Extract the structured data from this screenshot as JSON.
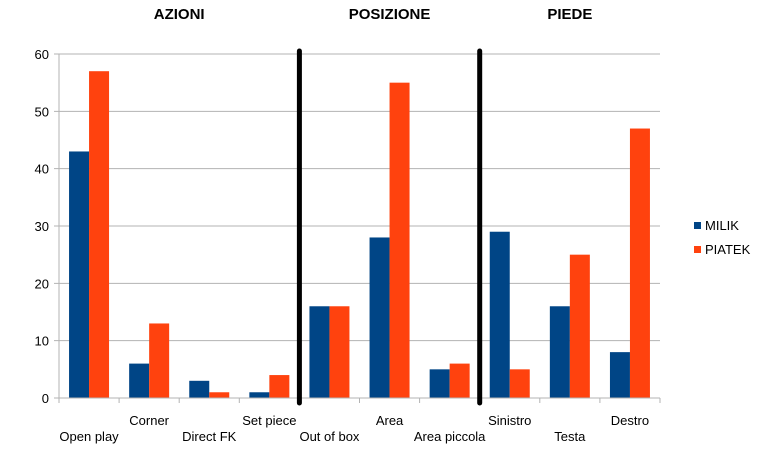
{
  "chart_data": {
    "type": "bar",
    "categories": [
      "Open play",
      "Corner",
      "Direct FK",
      "Set piece",
      "Out of box",
      "Area",
      "Area piccola",
      "Sinistro",
      "Testa",
      "Destro"
    ],
    "series": [
      {
        "name": "MILIK",
        "color": "#004586",
        "values": [
          43,
          6,
          3,
          1,
          16,
          28,
          5,
          29,
          16,
          8
        ]
      },
      {
        "name": "PIATEK",
        "color": "#ff420e",
        "values": [
          57,
          13,
          1,
          4,
          16,
          55,
          6,
          5,
          25,
          47
        ]
      }
    ],
    "sections": [
      {
        "title": "AZIONI",
        "start": 0,
        "end": 3
      },
      {
        "title": "POSIZIONE",
        "start": 4,
        "end": 6
      },
      {
        "title": "PIEDE",
        "start": 7,
        "end": 9
      }
    ],
    "ylim": [
      0,
      60
    ],
    "yticks": [
      0,
      10,
      20,
      30,
      40,
      50,
      60
    ],
    "grid": true,
    "legend": "right"
  }
}
